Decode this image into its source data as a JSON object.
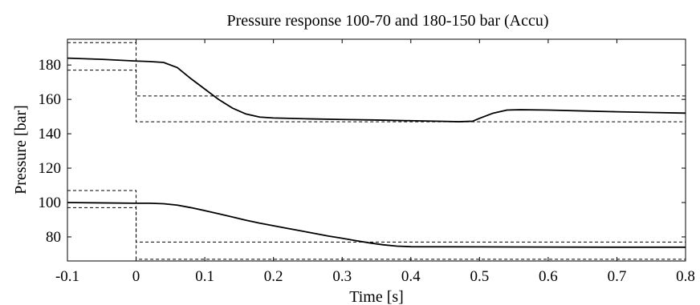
{
  "chart_data": {
    "type": "line",
    "title": "Pressure response 100-70 and 180-150 bar (Accu)",
    "xlabel": "Time [s]",
    "ylabel": "Pressure [bar]",
    "xlim": [
      -0.1,
      0.8
    ],
    "ylim": [
      66,
      195
    ],
    "x_ticks": [
      "-0.1",
      "0",
      "0.1",
      "0.2",
      "0.3",
      "0.4",
      "0.5",
      "0.6",
      "0.7",
      "0.8"
    ],
    "y_ticks": [
      "80",
      "100",
      "120",
      "140",
      "160",
      "180"
    ],
    "grid": false,
    "legend": "none",
    "series": [
      {
        "style": "solid",
        "color": "#000000",
        "points": [
          [
            -0.1,
            184.0
          ],
          [
            -0.05,
            183.3
          ],
          [
            0.0,
            182.3
          ],
          [
            0.02,
            182.0
          ],
          [
            0.04,
            181.5
          ],
          [
            0.06,
            178.5
          ],
          [
            0.08,
            172.0
          ],
          [
            0.1,
            166.0
          ],
          [
            0.12,
            160.0
          ],
          [
            0.14,
            155.0
          ],
          [
            0.16,
            151.5
          ],
          [
            0.18,
            149.7
          ],
          [
            0.2,
            149.2
          ],
          [
            0.25,
            148.7
          ],
          [
            0.3,
            148.3
          ],
          [
            0.35,
            148.0
          ],
          [
            0.4,
            147.6
          ],
          [
            0.45,
            147.2
          ],
          [
            0.47,
            147.0
          ],
          [
            0.49,
            147.3
          ],
          [
            0.5,
            149.0
          ],
          [
            0.52,
            152.0
          ],
          [
            0.54,
            153.8
          ],
          [
            0.56,
            154.0
          ],
          [
            0.6,
            153.8
          ],
          [
            0.65,
            153.3
          ],
          [
            0.7,
            152.8
          ],
          [
            0.75,
            152.4
          ],
          [
            0.8,
            152.0
          ]
        ]
      },
      {
        "style": "solid",
        "color": "#000000",
        "points": [
          [
            -0.1,
            100.0
          ],
          [
            -0.05,
            99.8
          ],
          [
            0.0,
            99.6
          ],
          [
            0.02,
            99.6
          ],
          [
            0.04,
            99.3
          ],
          [
            0.06,
            98.5
          ],
          [
            0.08,
            97.0
          ],
          [
            0.1,
            95.3
          ],
          [
            0.12,
            93.5
          ],
          [
            0.14,
            91.6
          ],
          [
            0.16,
            89.7
          ],
          [
            0.18,
            88.0
          ],
          [
            0.2,
            86.5
          ],
          [
            0.22,
            85.0
          ],
          [
            0.24,
            83.5
          ],
          [
            0.26,
            82.0
          ],
          [
            0.28,
            80.5
          ],
          [
            0.3,
            79.2
          ],
          [
            0.32,
            77.8
          ],
          [
            0.34,
            76.5
          ],
          [
            0.36,
            75.4
          ],
          [
            0.38,
            74.6
          ],
          [
            0.4,
            74.3
          ],
          [
            0.5,
            74.2
          ],
          [
            0.6,
            74.1
          ],
          [
            0.7,
            74.0
          ],
          [
            0.8,
            74.0
          ]
        ]
      },
      {
        "style": "dashed",
        "color": "#000000",
        "points": [
          [
            -0.1,
            193.0
          ],
          [
            0.0,
            193.0
          ],
          [
            0.0,
            147.0
          ],
          [
            0.8,
            147.0
          ]
        ]
      },
      {
        "style": "dashed",
        "color": "#000000",
        "points": [
          [
            -0.1,
            177.0
          ],
          [
            0.0,
            177.0
          ],
          [
            0.0,
            162.0
          ],
          [
            0.8,
            162.0
          ]
        ]
      },
      {
        "style": "dashed",
        "color": "#000000",
        "points": [
          [
            -0.1,
            107.0
          ],
          [
            0.0,
            107.0
          ],
          [
            0.0,
            67.0
          ],
          [
            0.8,
            67.0
          ]
        ]
      },
      {
        "style": "dashed",
        "color": "#000000",
        "points": [
          [
            -0.1,
            97.0
          ],
          [
            0.0,
            97.0
          ],
          [
            0.0,
            77.0
          ],
          [
            0.8,
            77.0
          ]
        ]
      }
    ]
  }
}
